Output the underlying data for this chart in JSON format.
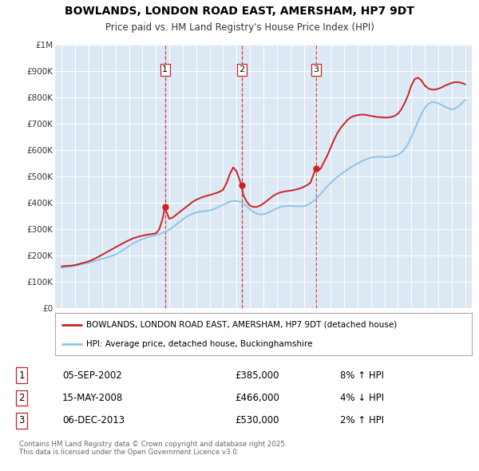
{
  "title": "BOWLANDS, LONDON ROAD EAST, AMERSHAM, HP7 9DT",
  "subtitle": "Price paid vs. HM Land Registry's House Price Index (HPI)",
  "bg_color": "#dce9f5",
  "red_line_label": "BOWLANDS, LONDON ROAD EAST, AMERSHAM, HP7 9DT (detached house)",
  "blue_line_label": "HPI: Average price, detached house, Buckinghamshire",
  "footer": "Contains HM Land Registry data © Crown copyright and database right 2025.\nThis data is licensed under the Open Government Licence v3.0.",
  "transactions": [
    {
      "num": 1,
      "date": "05-SEP-2002",
      "price": "£385,000",
      "pct": "8% ↑ HPI",
      "year": 2002.67
    },
    {
      "num": 2,
      "date": "15-MAY-2008",
      "price": "£466,000",
      "pct": "4% ↓ HPI",
      "year": 2008.37
    },
    {
      "num": 3,
      "date": "06-DEC-2013",
      "price": "£530,000",
      "pct": "2% ↑ HPI",
      "year": 2013.92
    }
  ],
  "hpi_x": [
    1995.0,
    1995.25,
    1995.5,
    1995.75,
    1996.0,
    1996.25,
    1996.5,
    1996.75,
    1997.0,
    1997.25,
    1997.5,
    1997.75,
    1998.0,
    1998.25,
    1998.5,
    1998.75,
    1999.0,
    1999.25,
    1999.5,
    1999.75,
    2000.0,
    2000.25,
    2000.5,
    2000.75,
    2001.0,
    2001.25,
    2001.5,
    2001.75,
    2002.0,
    2002.25,
    2002.5,
    2002.75,
    2003.0,
    2003.25,
    2003.5,
    2003.75,
    2004.0,
    2004.25,
    2004.5,
    2004.75,
    2005.0,
    2005.25,
    2005.5,
    2005.75,
    2006.0,
    2006.25,
    2006.5,
    2006.75,
    2007.0,
    2007.25,
    2007.5,
    2007.75,
    2008.0,
    2008.25,
    2008.5,
    2008.75,
    2009.0,
    2009.25,
    2009.5,
    2009.75,
    2010.0,
    2010.25,
    2010.5,
    2010.75,
    2011.0,
    2011.25,
    2011.5,
    2011.75,
    2012.0,
    2012.25,
    2012.5,
    2012.75,
    2013.0,
    2013.25,
    2013.5,
    2013.75,
    2014.0,
    2014.25,
    2014.5,
    2014.75,
    2015.0,
    2015.25,
    2015.5,
    2015.75,
    2016.0,
    2016.25,
    2016.5,
    2016.75,
    2017.0,
    2017.25,
    2017.5,
    2017.75,
    2018.0,
    2018.25,
    2018.5,
    2018.75,
    2019.0,
    2019.25,
    2019.5,
    2019.75,
    2020.0,
    2020.25,
    2020.5,
    2020.75,
    2021.0,
    2021.25,
    2021.5,
    2021.75,
    2022.0,
    2022.25,
    2022.5,
    2022.75,
    2023.0,
    2023.25,
    2023.5,
    2023.75,
    2024.0,
    2024.25,
    2024.5,
    2024.75,
    2025.0
  ],
  "hpi_y": [
    155000,
    157000,
    158000,
    160000,
    162000,
    165000,
    168000,
    170000,
    173000,
    177000,
    181000,
    185000,
    188000,
    192000,
    196000,
    200000,
    205000,
    212000,
    220000,
    228000,
    237000,
    245000,
    252000,
    258000,
    263000,
    268000,
    272000,
    275000,
    278000,
    282000,
    287000,
    292000,
    299000,
    308000,
    318000,
    328000,
    338000,
    347000,
    354000,
    360000,
    364000,
    367000,
    369000,
    370000,
    372000,
    376000,
    381000,
    387000,
    393000,
    399000,
    405000,
    408000,
    408000,
    405000,
    398000,
    388000,
    376000,
    366000,
    360000,
    357000,
    358000,
    361000,
    367000,
    374000,
    380000,
    385000,
    388000,
    389000,
    389000,
    388000,
    387000,
    387000,
    388000,
    392000,
    399000,
    408000,
    420000,
    434000,
    449000,
    463000,
    476000,
    488000,
    499000,
    509000,
    518000,
    527000,
    535000,
    543000,
    550000,
    557000,
    563000,
    568000,
    572000,
    574000,
    575000,
    575000,
    574000,
    574000,
    575000,
    578000,
    583000,
    591000,
    604000,
    624000,
    650000,
    680000,
    710000,
    738000,
    760000,
    775000,
    782000,
    782000,
    778000,
    772000,
    765000,
    759000,
    755000,
    758000,
    766000,
    778000,
    790000
  ],
  "red_x": [
    1995.0,
    1995.25,
    1995.5,
    1995.75,
    1996.0,
    1996.25,
    1996.5,
    1996.75,
    1997.0,
    1997.25,
    1997.5,
    1997.75,
    1998.0,
    1998.25,
    1998.5,
    1998.75,
    1999.0,
    1999.25,
    1999.5,
    1999.75,
    2000.0,
    2000.25,
    2000.5,
    2000.75,
    2001.0,
    2001.25,
    2001.5,
    2001.75,
    2002.0,
    2002.25,
    2002.5,
    2002.67,
    2002.75,
    2003.0,
    2003.25,
    2003.5,
    2003.75,
    2004.0,
    2004.25,
    2004.5,
    2004.75,
    2005.0,
    2005.25,
    2005.5,
    2005.75,
    2006.0,
    2006.25,
    2006.5,
    2006.75,
    2007.0,
    2007.25,
    2007.5,
    2007.75,
    2008.0,
    2008.37,
    2008.5,
    2008.75,
    2009.0,
    2009.25,
    2009.5,
    2009.75,
    2010.0,
    2010.25,
    2010.5,
    2010.75,
    2011.0,
    2011.25,
    2011.5,
    2011.75,
    2012.0,
    2012.25,
    2012.5,
    2012.75,
    2013.0,
    2013.25,
    2013.5,
    2013.75,
    2013.92,
    2014.0,
    2014.25,
    2014.5,
    2014.75,
    2015.0,
    2015.25,
    2015.5,
    2015.75,
    2016.0,
    2016.25,
    2016.5,
    2016.75,
    2017.0,
    2017.25,
    2017.5,
    2017.75,
    2018.0,
    2018.25,
    2018.5,
    2018.75,
    2019.0,
    2019.25,
    2019.5,
    2019.75,
    2020.0,
    2020.25,
    2020.5,
    2020.75,
    2021.0,
    2021.25,
    2021.5,
    2021.75,
    2022.0,
    2022.25,
    2022.5,
    2022.75,
    2023.0,
    2023.25,
    2023.5,
    2023.75,
    2024.0,
    2024.25,
    2024.5,
    2024.75,
    2025.0
  ],
  "red_y": [
    160000,
    161000,
    162000,
    163000,
    165000,
    168000,
    172000,
    175000,
    179000,
    184000,
    190000,
    197000,
    204000,
    211000,
    218000,
    225000,
    232000,
    239000,
    246000,
    253000,
    259000,
    265000,
    269000,
    273000,
    276000,
    279000,
    281000,
    283000,
    285000,
    300000,
    340000,
    385000,
    370000,
    340000,
    345000,
    355000,
    365000,
    375000,
    385000,
    395000,
    405000,
    412000,
    418000,
    423000,
    427000,
    430000,
    434000,
    438000,
    443000,
    450000,
    475000,
    510000,
    535000,
    520000,
    466000,
    430000,
    405000,
    390000,
    385000,
    385000,
    390000,
    398000,
    408000,
    418000,
    428000,
    435000,
    440000,
    443000,
    445000,
    447000,
    449000,
    452000,
    456000,
    461000,
    468000,
    477000,
    512000,
    530000,
    520000,
    530000,
    555000,
    580000,
    610000,
    640000,
    665000,
    685000,
    700000,
    715000,
    725000,
    730000,
    733000,
    735000,
    735000,
    733000,
    730000,
    728000,
    726000,
    725000,
    724000,
    724000,
    726000,
    730000,
    738000,
    755000,
    778000,
    808000,
    845000,
    870000,
    875000,
    865000,
    845000,
    835000,
    830000,
    830000,
    833000,
    838000,
    845000,
    850000,
    855000,
    858000,
    858000,
    855000,
    850000
  ],
  "ylim": [
    0,
    1000000
  ],
  "yticks": [
    0,
    100000,
    200000,
    300000,
    400000,
    500000,
    600000,
    700000,
    800000,
    900000,
    1000000
  ],
  "ytick_labels": [
    "£0",
    "£100K",
    "£200K",
    "£300K",
    "£400K",
    "£500K",
    "£600K",
    "£700K",
    "£800K",
    "£900K",
    "£1M"
  ],
  "xlim": [
    1994.5,
    2025.5
  ],
  "xticks": [
    1995,
    1996,
    1997,
    1998,
    1999,
    2000,
    2001,
    2002,
    2003,
    2004,
    2005,
    2006,
    2007,
    2008,
    2009,
    2010,
    2011,
    2012,
    2013,
    2014,
    2015,
    2016,
    2017,
    2018,
    2019,
    2020,
    2021,
    2022,
    2023,
    2024,
    2025
  ]
}
